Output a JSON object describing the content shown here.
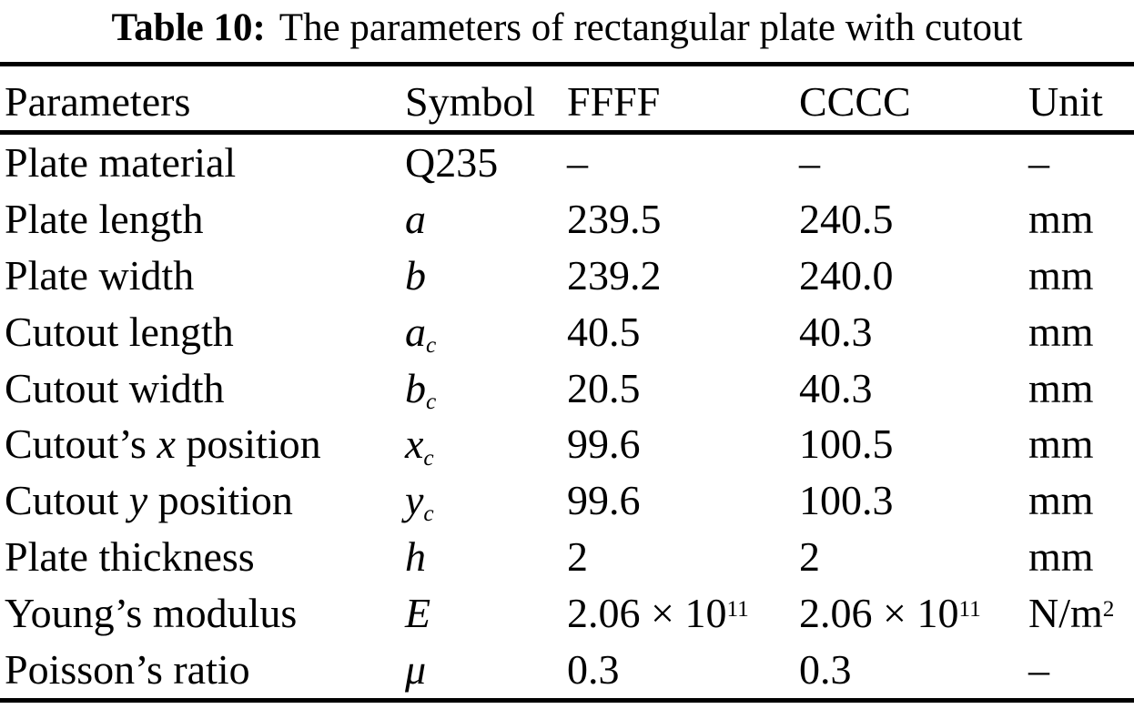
{
  "colors": {
    "text": "#000000",
    "background": "#ffffff"
  },
  "caption": {
    "label": "Table 10:",
    "text": "The parameters of rectangular plate with cutout"
  },
  "table": {
    "columns": [
      "Parameters",
      "Symbol",
      "FFFF",
      "CCCC",
      "Unit"
    ],
    "rows": [
      {
        "cells": [
          [
            {
              "t": "Plate material"
            }
          ],
          [
            {
              "t": "Q235"
            }
          ],
          [
            {
              "t": "–"
            }
          ],
          [
            {
              "t": "–"
            }
          ],
          [
            {
              "t": "–"
            }
          ]
        ]
      },
      {
        "cells": [
          [
            {
              "t": "Plate length"
            }
          ],
          [
            {
              "t": "a",
              "i": true
            }
          ],
          [
            {
              "t": "239.5"
            }
          ],
          [
            {
              "t": "240.5"
            }
          ],
          [
            {
              "t": "mm"
            }
          ]
        ]
      },
      {
        "cells": [
          [
            {
              "t": "Plate width"
            }
          ],
          [
            {
              "t": "b",
              "i": true
            }
          ],
          [
            {
              "t": "239.2"
            }
          ],
          [
            {
              "t": "240.0"
            }
          ],
          [
            {
              "t": "mm"
            }
          ]
        ]
      },
      {
        "cells": [
          [
            {
              "t": "Cutout length"
            }
          ],
          [
            {
              "t": "a",
              "i": true
            },
            {
              "t": "c",
              "i": true,
              "sub": true
            }
          ],
          [
            {
              "t": "40.5"
            }
          ],
          [
            {
              "t": "40.3"
            }
          ],
          [
            {
              "t": "mm"
            }
          ]
        ]
      },
      {
        "cells": [
          [
            {
              "t": "Cutout width"
            }
          ],
          [
            {
              "t": "b",
              "i": true
            },
            {
              "t": "c",
              "i": true,
              "sub": true
            }
          ],
          [
            {
              "t": "20.5"
            }
          ],
          [
            {
              "t": "40.3"
            }
          ],
          [
            {
              "t": "mm"
            }
          ]
        ]
      },
      {
        "cells": [
          [
            {
              "t": "Cutout’s "
            },
            {
              "t": "x",
              "i": true
            },
            {
              "t": " position"
            }
          ],
          [
            {
              "t": "x",
              "i": true
            },
            {
              "t": "c",
              "i": true,
              "sub": true
            }
          ],
          [
            {
              "t": "99.6"
            }
          ],
          [
            {
              "t": "100.5"
            }
          ],
          [
            {
              "t": "mm"
            }
          ]
        ]
      },
      {
        "cells": [
          [
            {
              "t": "Cutout "
            },
            {
              "t": "y",
              "i": true
            },
            {
              "t": " position"
            }
          ],
          [
            {
              "t": "y",
              "i": true
            },
            {
              "t": "c",
              "i": true,
              "sub": true
            }
          ],
          [
            {
              "t": "99.6"
            }
          ],
          [
            {
              "t": "100.3"
            }
          ],
          [
            {
              "t": "mm"
            }
          ]
        ]
      },
      {
        "cells": [
          [
            {
              "t": "Plate thickness"
            }
          ],
          [
            {
              "t": "h",
              "i": true
            }
          ],
          [
            {
              "t": "2"
            }
          ],
          [
            {
              "t": "2"
            }
          ],
          [
            {
              "t": "mm"
            }
          ]
        ]
      },
      {
        "cells": [
          [
            {
              "t": "Young’s modulus"
            }
          ],
          [
            {
              "t": "E",
              "i": true
            }
          ],
          [
            {
              "t": "2.06 × 10"
            },
            {
              "t": "11",
              "sup": true
            }
          ],
          [
            {
              "t": "2.06 × 10"
            },
            {
              "t": "11",
              "sup": true
            }
          ],
          [
            {
              "t": "N/m"
            },
            {
              "t": "2",
              "sup": true
            }
          ]
        ]
      },
      {
        "cells": [
          [
            {
              "t": "Poisson’s ratio"
            }
          ],
          [
            {
              "t": "μ",
              "i": true
            }
          ],
          [
            {
              "t": "0.3"
            }
          ],
          [
            {
              "t": "0.3"
            }
          ],
          [
            {
              "t": "–"
            }
          ]
        ]
      }
    ]
  }
}
